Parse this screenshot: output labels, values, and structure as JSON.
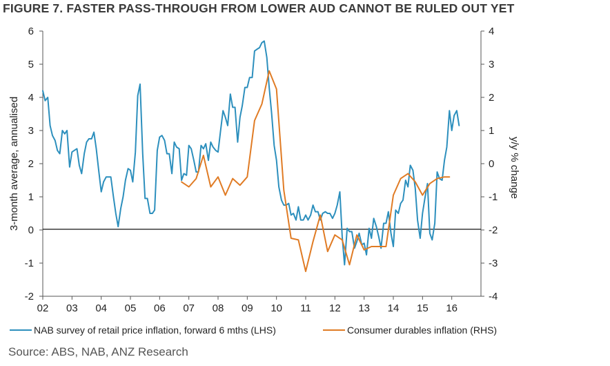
{
  "header": {
    "title": "FIGURE 7. FASTER PASS-THROUGH FROM LOWER AUD CANNOT BE RULED OUT YET"
  },
  "footer": {
    "source": "Source: ABS, NAB, ANZ Research"
  },
  "colors": {
    "series1": "#2c8fbd",
    "series2": "#e07b24",
    "axis": "#555555"
  },
  "chart_data": {
    "type": "line",
    "title": "FIGURE 7. FASTER PASS-THROUGH FROM LOWER AUD CANNOT BE RULED OUT YET",
    "ylabel": "3-month average, annualised",
    "y2label": "y/y % change",
    "xlim": [
      2002,
      2017
    ],
    "ylim": [
      -2,
      6
    ],
    "y2lim": [
      -4,
      4
    ],
    "x_ticks": [
      2002,
      2003,
      2004,
      2005,
      2006,
      2007,
      2008,
      2009,
      2010,
      2011,
      2012,
      2013,
      2014,
      2015,
      2016
    ],
    "x_tick_labels": [
      "02",
      "03",
      "04",
      "05",
      "06",
      "07",
      "08",
      "09",
      "10",
      "11",
      "12",
      "13",
      "14",
      "15",
      "16"
    ],
    "y_ticks": [
      -2,
      -1,
      0,
      1,
      2,
      3,
      4,
      5,
      6
    ],
    "y2_ticks": [
      -4,
      -3,
      -2,
      -1,
      0,
      1,
      2,
      3,
      4
    ],
    "legend_position": "bottom",
    "series": [
      {
        "name": "NAB survey of retail price inflation, forward 6 mths (LHS)",
        "axis": "left",
        "color": "#2c8fbd",
        "x": [
          2002.0,
          2002.08,
          2002.17,
          2002.25,
          2002.33,
          2002.42,
          2002.5,
          2002.58,
          2002.67,
          2002.75,
          2002.83,
          2002.92,
          2003.0,
          2003.08,
          2003.17,
          2003.25,
          2003.33,
          2003.42,
          2003.5,
          2003.58,
          2003.67,
          2003.75,
          2003.83,
          2003.92,
          2004.0,
          2004.08,
          2004.17,
          2004.25,
          2004.33,
          2004.42,
          2004.5,
          2004.58,
          2004.67,
          2004.75,
          2004.83,
          2004.92,
          2005.0,
          2005.08,
          2005.17,
          2005.25,
          2005.33,
          2005.42,
          2005.5,
          2005.58,
          2005.67,
          2005.75,
          2005.83,
          2005.92,
          2006.0,
          2006.08,
          2006.17,
          2006.25,
          2006.33,
          2006.42,
          2006.5,
          2006.58,
          2006.67,
          2006.75,
          2006.83,
          2006.92,
          2007.0,
          2007.08,
          2007.17,
          2007.25,
          2007.33,
          2007.42,
          2007.5,
          2007.58,
          2007.67,
          2007.75,
          2007.83,
          2007.92,
          2008.0,
          2008.08,
          2008.17,
          2008.25,
          2008.33,
          2008.42,
          2008.5,
          2008.58,
          2008.67,
          2008.75,
          2008.83,
          2008.92,
          2009.0,
          2009.08,
          2009.17,
          2009.25,
          2009.33,
          2009.42,
          2009.5,
          2009.58,
          2009.67,
          2009.75,
          2009.83,
          2009.92,
          2010.0,
          2010.08,
          2010.17,
          2010.25,
          2010.33,
          2010.42,
          2010.5,
          2010.58,
          2010.67,
          2010.75,
          2010.83,
          2010.92,
          2011.0,
          2011.08,
          2011.17,
          2011.25,
          2011.33,
          2011.42,
          2011.5,
          2011.58,
          2011.67,
          2011.75,
          2011.83,
          2011.92,
          2012.0,
          2012.08,
          2012.17,
          2012.25,
          2012.33,
          2012.42,
          2012.5,
          2012.58,
          2012.67,
          2012.75,
          2012.83,
          2012.92,
          2013.0,
          2013.08,
          2013.17,
          2013.25,
          2013.33,
          2013.42,
          2013.5,
          2013.58,
          2013.67,
          2013.75,
          2013.83,
          2013.92,
          2014.0,
          2014.08,
          2014.17,
          2014.25,
          2014.33,
          2014.42,
          2014.5,
          2014.58,
          2014.67,
          2014.75,
          2014.83,
          2014.92,
          2015.0,
          2015.08,
          2015.17,
          2015.25,
          2015.33,
          2015.42,
          2015.5,
          2015.58,
          2015.67,
          2015.75,
          2015.83,
          2015.92,
          2016.0,
          2016.08,
          2016.17,
          2016.25
        ],
        "values": [
          4.2,
          3.9,
          4.0,
          3.15,
          2.85,
          2.7,
          2.4,
          2.3,
          3.0,
          2.9,
          3.0,
          1.9,
          2.35,
          2.4,
          2.45,
          1.95,
          1.7,
          2.3,
          2.65,
          2.75,
          2.75,
          2.95,
          2.45,
          1.75,
          1.15,
          1.45,
          1.6,
          1.6,
          1.6,
          1.0,
          0.5,
          0.1,
          0.65,
          1.0,
          1.5,
          1.85,
          1.8,
          1.45,
          2.35,
          4.05,
          4.4,
          2.3,
          0.95,
          0.95,
          0.5,
          0.5,
          0.6,
          2.4,
          2.8,
          2.85,
          2.7,
          2.3,
          2.3,
          1.7,
          2.65,
          2.5,
          2.45,
          1.5,
          1.7,
          1.65,
          2.55,
          2.45,
          2.1,
          1.75,
          1.75,
          2.55,
          2.45,
          2.6,
          2.1,
          2.65,
          2.5,
          2.4,
          2.35,
          2.95,
          3.6,
          3.4,
          3.15,
          4.1,
          3.7,
          3.7,
          2.65,
          3.4,
          3.75,
          4.3,
          4.3,
          4.6,
          4.6,
          5.4,
          5.45,
          5.5,
          5.65,
          5.7,
          5.2,
          4.3,
          3.55,
          2.55,
          2.1,
          1.3,
          0.9,
          0.75,
          0.75,
          0.8,
          0.45,
          0.5,
          0.3,
          0.7,
          0.3,
          0.3,
          0.45,
          0.3,
          0.45,
          0.75,
          0.55,
          0.55,
          0.3,
          0.5,
          0.55,
          0.5,
          0.5,
          0.35,
          0.5,
          0.75,
          1.15,
          -0.2,
          -1.05,
          0.05,
          -0.05,
          -0.05,
          -0.55,
          -0.35,
          -0.1,
          -0.45,
          -0.4,
          -0.75,
          0.05,
          -0.25,
          0.35,
          0.1,
          -0.2,
          -0.55,
          0.2,
          0.2,
          0.55,
          -0.1,
          -0.5,
          0.6,
          0.5,
          0.8,
          0.9,
          1.5,
          1.3,
          1.95,
          1.8,
          1.25,
          0.3,
          -0.25,
          0.5,
          0.95,
          1.4,
          -0.1,
          -0.3,
          0.2,
          1.75,
          1.55,
          1.5,
          2.1,
          2.5,
          3.6,
          3.0,
          3.45,
          3.6,
          3.15
        ]
      },
      {
        "name": "Consumer durables inflation (RHS)",
        "axis": "right",
        "color": "#e07b24",
        "x": [
          2006.75,
          2007.0,
          2007.25,
          2007.5,
          2007.75,
          2008.0,
          2008.25,
          2008.5,
          2008.75,
          2009.0,
          2009.25,
          2009.5,
          2009.75,
          2010.0,
          2010.25,
          2010.5,
          2010.75,
          2011.0,
          2011.25,
          2011.5,
          2011.75,
          2012.0,
          2012.25,
          2012.5,
          2012.75,
          2013.0,
          2013.25,
          2013.5,
          2013.75,
          2014.0,
          2014.25,
          2014.5,
          2014.75,
          2015.0,
          2015.25,
          2015.5,
          2015.75,
          2015.92
        ],
        "values": [
          -0.55,
          -0.7,
          -0.45,
          0.25,
          -0.7,
          -0.4,
          -0.95,
          -0.45,
          -0.65,
          -0.4,
          1.3,
          1.8,
          2.8,
          2.25,
          -0.8,
          -2.25,
          -2.3,
          -3.25,
          -2.35,
          -1.55,
          -2.65,
          -2.15,
          -2.3,
          -3.05,
          -2.15,
          -2.6,
          -2.5,
          -2.5,
          -2.5,
          -0.95,
          -0.45,
          -0.3,
          -0.55,
          -0.95,
          -0.6,
          -0.45,
          -0.4,
          -0.4
        ]
      }
    ]
  }
}
